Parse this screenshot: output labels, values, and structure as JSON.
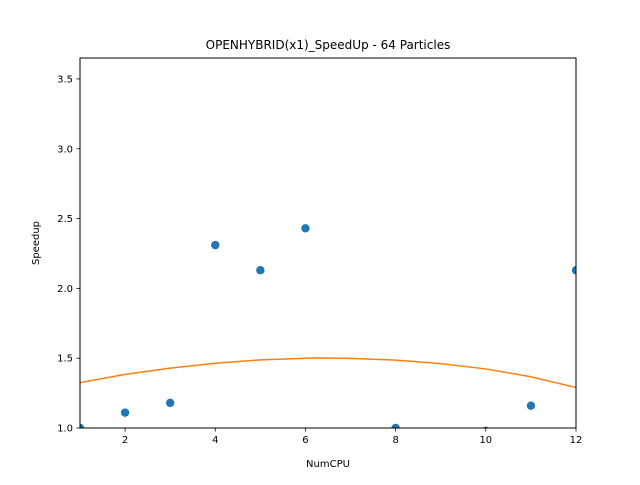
{
  "chart_data": {
    "type": "scatter",
    "title": "OPENHYBRID(x1)_SpeedUp - 64 Particles",
    "xlabel": "NumCPU",
    "ylabel": "Speedup",
    "xlim": [
      1,
      12
    ],
    "ylim": [
      1.0,
      3.65
    ],
    "xticks": [
      2,
      4,
      6,
      8,
      10,
      12
    ],
    "yticks": [
      1.0,
      1.5,
      2.0,
      2.5,
      3.0,
      3.5
    ],
    "ytick_labels": [
      "1.0",
      "1.5",
      "2.0",
      "2.5",
      "3.0",
      "3.5"
    ],
    "grid": false,
    "series": [
      {
        "kind": "scatter",
        "color": "#1f77b4",
        "x": [
          1,
          2,
          3,
          4,
          5,
          6,
          8,
          10,
          11,
          12
        ],
        "y": [
          1.0,
          1.11,
          1.18,
          2.31,
          2.13,
          2.43,
          1.0,
          0.98,
          1.16,
          2.13
        ]
      },
      {
        "kind": "fit-curve",
        "color": "#ff7f0e",
        "x": [
          1,
          2,
          3,
          4,
          5,
          6,
          6.3,
          7,
          8,
          9,
          10,
          11,
          12
        ],
        "y": [
          1.325,
          1.384,
          1.429,
          1.464,
          1.488,
          1.5,
          1.502,
          1.499,
          1.486,
          1.461,
          1.423,
          1.367,
          1.29
        ]
      }
    ]
  }
}
